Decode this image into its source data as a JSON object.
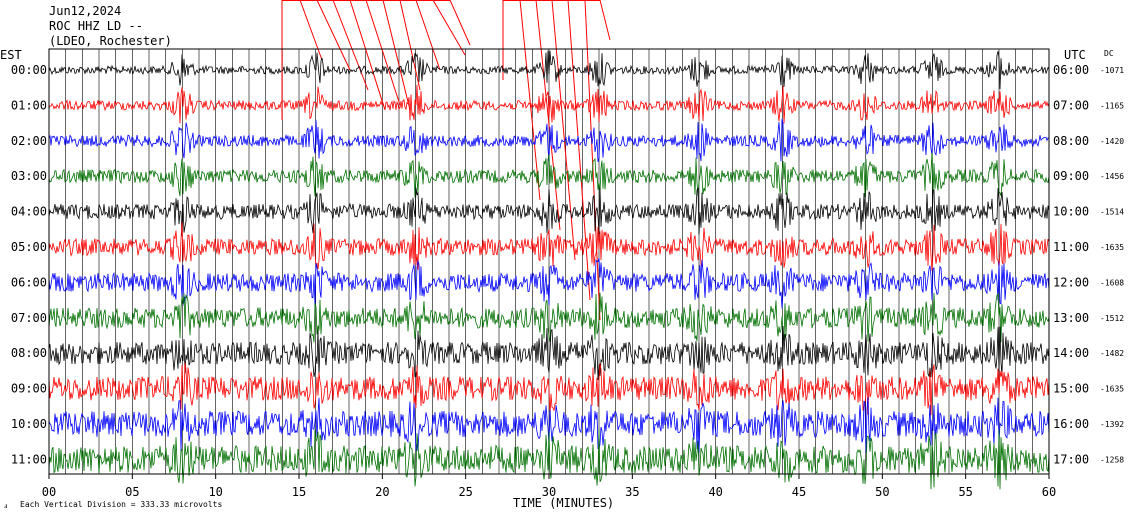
{
  "header": {
    "date": "Jun12,2024",
    "station": "ROC HHZ LD --",
    "network": "(LDEO, Rochester)"
  },
  "labels": {
    "left_tz": "EST",
    "right_tz": "UTC",
    "dc": "DC",
    "xlabel": "TIME (MINUTES)",
    "scale_note": "Each Vertical Division = 333.33 microvolts"
  },
  "chart_data": {
    "type": "line",
    "title": "",
    "xlabel": "TIME (MINUTES)",
    "xlim": [
      0,
      60
    ],
    "x_ticks": [
      "00",
      "05",
      "10",
      "15",
      "20",
      "25",
      "30",
      "35",
      "40",
      "45",
      "50",
      "55",
      "60"
    ],
    "trace_colors": [
      "#000000",
      "#ff0000",
      "#0000ff",
      "#007000"
    ],
    "rows": [
      {
        "est": "00:00",
        "utc": "06:00",
        "dc": "-1071"
      },
      {
        "est": "01:00",
        "utc": "07:00",
        "dc": "-1165"
      },
      {
        "est": "02:00",
        "utc": "08:00",
        "dc": "-1420"
      },
      {
        "est": "03:00",
        "utc": "09:00",
        "dc": "-1456"
      },
      {
        "est": "04:00",
        "utc": "10:00",
        "dc": "-1514"
      },
      {
        "est": "05:00",
        "utc": "11:00",
        "dc": "-1635"
      },
      {
        "est": "06:00",
        "utc": "12:00",
        "dc": "-1608"
      },
      {
        "est": "07:00",
        "utc": "13:00",
        "dc": "-1512"
      },
      {
        "est": "08:00",
        "utc": "14:00",
        "dc": "-1482"
      },
      {
        "est": "09:00",
        "utc": "15:00",
        "dc": "-1635"
      },
      {
        "est": "10:00",
        "utc": "16:00",
        "dc": "-1392"
      },
      {
        "est": "11:00",
        "utc": "17:00",
        "dc": "-1258"
      }
    ],
    "grid": true
  }
}
